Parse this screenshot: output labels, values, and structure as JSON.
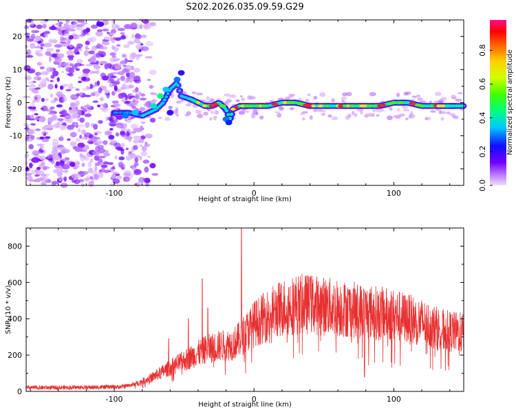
{
  "title": "S202.2026.035.09.59.G29",
  "chart_data": [
    {
      "type": "heatmap",
      "xlabel": "Height of straight line (km)",
      "ylabel": "Frequency (Hz)",
      "xlim": [
        -163,
        150
      ],
      "ylim": [
        -25,
        25
      ],
      "xticks": [
        -100,
        0,
        100
      ],
      "yticks": [
        -20,
        -10,
        0,
        10,
        20
      ],
      "colorbar": {
        "label": "Normalized spectral amplitude",
        "range": [
          0,
          0.98
        ],
        "ticks": [
          0.0,
          0.2,
          0.4,
          0.6,
          0.8
        ],
        "tick_labels": [
          "0.0",
          "0.2",
          "0.4",
          "0.6",
          "0.8"
        ],
        "colormap": "rainbow (purple-blue-cyan-green-yellow-orange-red-pink)"
      },
      "features": {
        "noise_region_x": [
          -163,
          -85
        ],
        "noise_level": 0.15,
        "signal_track": [
          [
            -100,
            -3
          ],
          [
            -90,
            -3
          ],
          [
            -80,
            -4
          ],
          [
            -75,
            -3
          ],
          [
            -70,
            -2
          ],
          [
            -65,
            0
          ],
          [
            -60,
            4
          ],
          [
            -55,
            6
          ],
          [
            -52,
            2
          ],
          [
            -45,
            1
          ],
          [
            -40,
            0
          ],
          [
            -35,
            -1
          ],
          [
            -30,
            -1
          ],
          [
            -25,
            0
          ],
          [
            -20,
            -2
          ],
          [
            -17,
            -5
          ],
          [
            -15,
            -2
          ],
          [
            -10,
            -1
          ],
          [
            0,
            -1
          ],
          [
            10,
            -1
          ],
          [
            20,
            0
          ],
          [
            30,
            0
          ],
          [
            40,
            -1
          ],
          [
            50,
            -1
          ],
          [
            60,
            -1
          ],
          [
            70,
            -1
          ],
          [
            80,
            -1
          ],
          [
            90,
            -1
          ],
          [
            100,
            0
          ],
          [
            110,
            0
          ],
          [
            120,
            -1
          ],
          [
            130,
            -1
          ],
          [
            140,
            -1
          ],
          [
            150,
            -1
          ]
        ]
      }
    },
    {
      "type": "line",
      "xlabel": "Height of straight line (km)",
      "ylabel": "SNR (10 * v/v)",
      "xlim": [
        -163,
        150
      ],
      "ylim": [
        0,
        900
      ],
      "xticks": [
        -100,
        0,
        100
      ],
      "yticks": [
        0,
        200,
        400,
        600,
        800
      ],
      "color": "#e83030",
      "series_envelope": {
        "x": [
          -163,
          -120,
          -95,
          -85,
          -75,
          -65,
          -55,
          -45,
          -35,
          -25,
          -15,
          -10,
          -5,
          0,
          10,
          20,
          30,
          40,
          50,
          60,
          70,
          80,
          90,
          100,
          110,
          120,
          130,
          140,
          150
        ],
        "mean": [
          20,
          22,
          25,
          40,
          70,
          110,
          150,
          190,
          230,
          250,
          260,
          290,
          330,
          370,
          420,
          460,
          480,
          480,
          470,
          460,
          450,
          440,
          430,
          420,
          400,
          380,
          350,
          330,
          320
        ]
      },
      "spikes": [
        {
          "x": -61,
          "y": 290
        },
        {
          "x": -47,
          "y": 400
        },
        {
          "x": -37,
          "y": 620
        },
        {
          "x": -33,
          "y": 460
        },
        {
          "x": -9,
          "y": 900
        },
        {
          "x": 40,
          "y": 620
        },
        {
          "x": 79,
          "y": 80
        }
      ]
    }
  ]
}
